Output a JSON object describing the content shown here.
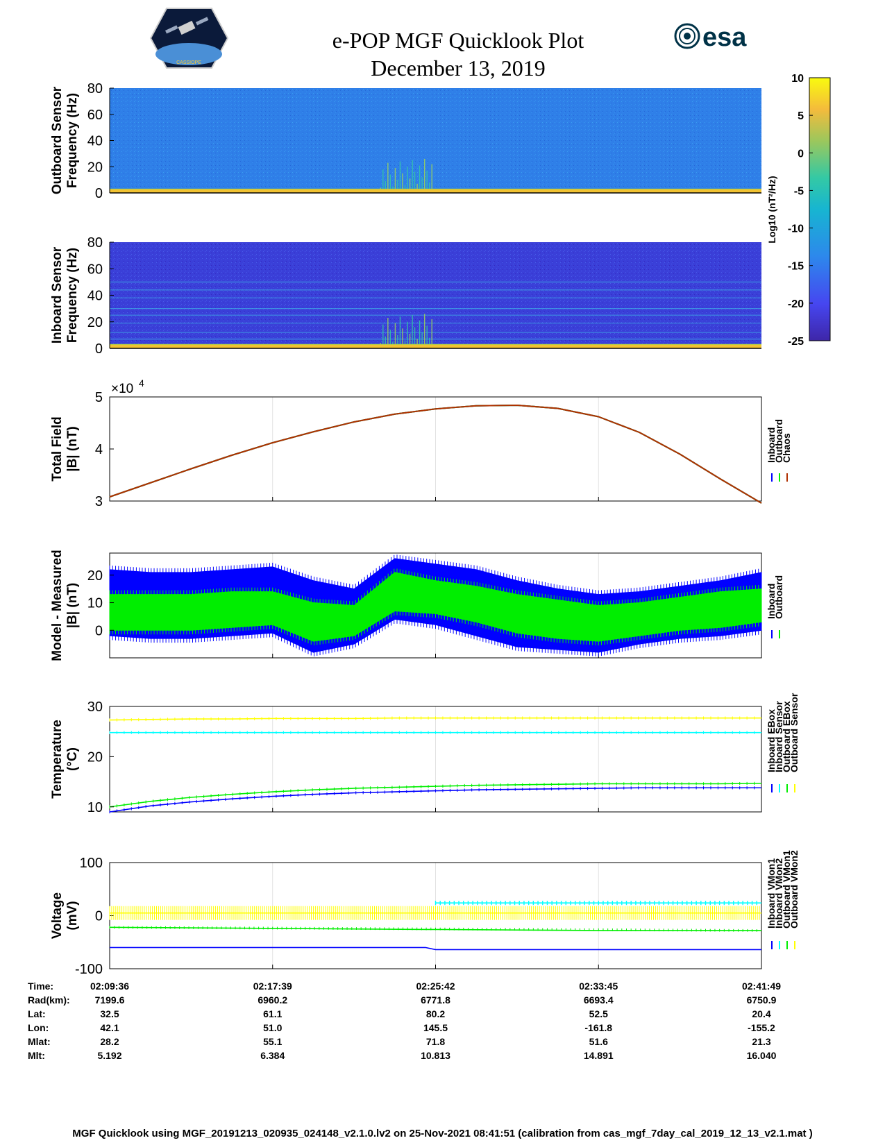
{
  "header": {
    "title_line1": "e-POP MGF Quicklook Plot",
    "title_line2": "December 13, 2019",
    "logo_text": "CASSIOPE",
    "esa_text": "esa"
  },
  "colors": {
    "inboard": "#0000ff",
    "outboard": "#00ee00",
    "chaos": "#ff0000",
    "cyan": "#00ffff",
    "yellow": "#ffff00"
  },
  "chart_data": [
    {
      "type": "heatmap",
      "ylabel_line1": "Outboard Sensor",
      "ylabel_line2": "Frequency (Hz)",
      "ylim": [
        0,
        80
      ],
      "yticks": [
        0,
        20,
        40,
        60,
        80
      ],
      "background": "#2f7fe8",
      "signal_band_hz": [
        0,
        3
      ],
      "burst_window": "02:24:00 - 02:26:00"
    },
    {
      "type": "heatmap",
      "ylabel_line1": "Inboard Sensor",
      "ylabel_line2": "Frequency (Hz)",
      "ylim": [
        0,
        80
      ],
      "yticks": [
        0,
        20,
        40,
        60,
        80
      ],
      "background": "#3a35d8",
      "harmonic_lines_hz": [
        2,
        7,
        12,
        19,
        25,
        30,
        38,
        44,
        50
      ],
      "signal_band_hz": [
        0,
        3
      ],
      "burst_window": "02:24:00 - 02:26:00"
    },
    {
      "type": "colorbar",
      "label": "Log10 (nT²/Hz)",
      "clim": [
        -25,
        10
      ],
      "ticks": [
        10,
        5,
        0,
        -5,
        -10,
        -15,
        -20,
        -25
      ],
      "colormap": [
        "#3e26a8",
        "#4646f0",
        "#2d88ec",
        "#17b5d1",
        "#34c9a4",
        "#9cc75c",
        "#f4bb3c",
        "#f9fb0e"
      ]
    },
    {
      "type": "line",
      "ylabel_line1": "Total Field",
      "ylabel_line2": "|B| (nT)",
      "multiplier": "×10",
      "multiplier_exp": "4",
      "ylim": [
        3,
        5
      ],
      "yticks": [
        3,
        4,
        5
      ],
      "legend": [
        "Inboard",
        "Outboard",
        "Chaos"
      ],
      "x_minutes": [
        0,
        2,
        4,
        6,
        8,
        10,
        12,
        14,
        16,
        18,
        20,
        22,
        24,
        26,
        28,
        30,
        32
      ],
      "series": [
        {
          "name": "Inboard",
          "color": "#0000ff",
          "values": [
            3.08,
            3.35,
            3.62,
            3.88,
            4.12,
            4.33,
            4.52,
            4.67,
            4.77,
            4.83,
            4.84,
            4.78,
            4.62,
            4.32,
            3.9,
            3.42,
            2.96
          ]
        },
        {
          "name": "Outboard",
          "color": "#00ee00",
          "values": [
            3.08,
            3.35,
            3.62,
            3.88,
            4.12,
            4.33,
            4.52,
            4.67,
            4.77,
            4.83,
            4.84,
            4.78,
            4.62,
            4.32,
            3.9,
            3.42,
            2.96
          ]
        },
        {
          "name": "Chaos",
          "color": "#b03000",
          "values": [
            3.08,
            3.35,
            3.62,
            3.88,
            4.12,
            4.33,
            4.52,
            4.67,
            4.77,
            4.83,
            4.84,
            4.78,
            4.62,
            4.32,
            3.9,
            3.42,
            2.96
          ]
        }
      ]
    },
    {
      "type": "area",
      "ylabel_line1": "Model - Measured",
      "ylabel_line2": "|B| (nT)",
      "ylim": [
        -10,
        28
      ],
      "yticks": [
        0,
        10,
        20
      ],
      "legend": [
        "Inboard",
        "Outboard"
      ],
      "x_minutes": [
        0,
        2,
        4,
        6,
        8,
        10,
        12,
        14,
        16,
        18,
        20,
        22,
        24,
        26,
        28,
        30,
        32
      ],
      "series": [
        {
          "name": "Inboard",
          "color": "#0000ff",
          "upper": [
            22,
            21,
            21,
            22,
            23,
            18,
            15,
            26,
            24,
            22,
            18,
            15,
            13,
            14,
            16,
            18,
            21
          ],
          "lower": [
            -2,
            -3,
            -3,
            -2,
            -1,
            -8,
            -5,
            4,
            2,
            -2,
            -6,
            -7,
            -8,
            -5,
            -3,
            -2,
            0
          ]
        },
        {
          "name": "Outboard",
          "color": "#00ee00",
          "upper": [
            13,
            13,
            13,
            14,
            14,
            10,
            9,
            21,
            18,
            16,
            13,
            11,
            9,
            10,
            12,
            14,
            15
          ],
          "lower": [
            0,
            0,
            0,
            1,
            2,
            -4,
            -2,
            7,
            6,
            3,
            -1,
            -3,
            -4,
            -2,
            0,
            1,
            3
          ]
        }
      ]
    },
    {
      "type": "line",
      "ylabel_line1": "Temperature",
      "ylabel_line2": "(°C)",
      "ylim": [
        9,
        30
      ],
      "yticks": [
        10,
        20,
        30
      ],
      "legend": [
        "Inboard EBox",
        "Inboard Sensor",
        "Outboard EBox",
        "Outboard Sensor"
      ],
      "x_minutes": [
        0,
        2,
        4,
        6,
        8,
        10,
        12,
        14,
        16,
        18,
        20,
        22,
        24,
        26,
        28,
        30,
        32
      ],
      "series": [
        {
          "name": "Inboard EBox",
          "color": "#0000ff",
          "values": [
            9.0,
            10.2,
            11.0,
            11.6,
            12.1,
            12.5,
            12.8,
            13.0,
            13.2,
            13.4,
            13.5,
            13.6,
            13.7,
            13.8,
            13.8,
            13.8,
            13.8
          ]
        },
        {
          "name": "Inboard Sensor",
          "color": "#00ffff",
          "values": [
            24.8,
            24.8,
            24.8,
            24.8,
            24.8,
            24.8,
            24.8,
            24.8,
            24.8,
            24.8,
            24.8,
            24.8,
            24.8,
            24.8,
            24.8,
            24.8,
            24.8
          ]
        },
        {
          "name": "Outboard EBox",
          "color": "#00ee00",
          "values": [
            10.0,
            11.1,
            11.9,
            12.5,
            13.0,
            13.4,
            13.7,
            13.9,
            14.1,
            14.3,
            14.4,
            14.5,
            14.6,
            14.6,
            14.6,
            14.6,
            14.7
          ]
        },
        {
          "name": "Outboard Sensor",
          "color": "#ffff00",
          "values": [
            27.3,
            27.4,
            27.5,
            27.5,
            27.6,
            27.6,
            27.6,
            27.7,
            27.7,
            27.7,
            27.7,
            27.7,
            27.7,
            27.7,
            27.7,
            27.7,
            27.7
          ]
        }
      ]
    },
    {
      "type": "line",
      "ylabel_line1": "Voltage",
      "ylabel_line2": "(mV)",
      "ylim": [
        -100,
        100
      ],
      "yticks": [
        -100,
        0,
        100
      ],
      "legend": [
        "Inboard VMon1",
        "Inboard VMon2",
        "Outboard VMon1",
        "Outboard VMon2"
      ],
      "x_minutes": [
        0,
        8,
        15.5,
        16,
        24,
        32
      ],
      "series": [
        {
          "name": "Inboard VMon1",
          "color": "#0000ff",
          "values": [
            -60,
            -60,
            -60,
            -64,
            -64,
            -64
          ]
        },
        {
          "name": "Inboard VMon2",
          "color": "#00ffff",
          "values": [
            null,
            null,
            null,
            24,
            24,
            24
          ]
        },
        {
          "name": "Outboard VMon1",
          "color": "#00ee00",
          "values": [
            -22,
            -24,
            -26,
            -26,
            -28,
            -28
          ]
        },
        {
          "name": "Outboard VMon2",
          "color": "#ffff00",
          "values": [
            5,
            5,
            5,
            5,
            5,
            5
          ]
        }
      ]
    }
  ],
  "ephemeris": {
    "row_labels": [
      "Time:",
      "Rad(km):",
      "Lat:",
      "Lon:",
      "Mlat:",
      "Mlt:"
    ],
    "columns": [
      [
        "02:09:36",
        "7199.6",
        "32.5",
        "42.1",
        "28.2",
        "5.192"
      ],
      [
        "02:17:39",
        "6960.2",
        "61.1",
        "51.0",
        "55.1",
        "6.384"
      ],
      [
        "02:25:42",
        "6771.8",
        "80.2",
        "145.5",
        "71.8",
        "10.813"
      ],
      [
        "02:33:45",
        "6693.4",
        "52.5",
        "-161.8",
        "51.6",
        "14.891"
      ],
      [
        "02:41:49",
        "6750.9",
        "20.4",
        "-155.2",
        "21.3",
        "16.040"
      ]
    ]
  },
  "footer": "MGF Quicklook using MGF_20191213_020935_024148_v2.1.0.lv2 on 25-Nov-2021 08:41:51 (calibration from cas_mgf_7day_cal_2019_12_13_v2.1.mat )"
}
